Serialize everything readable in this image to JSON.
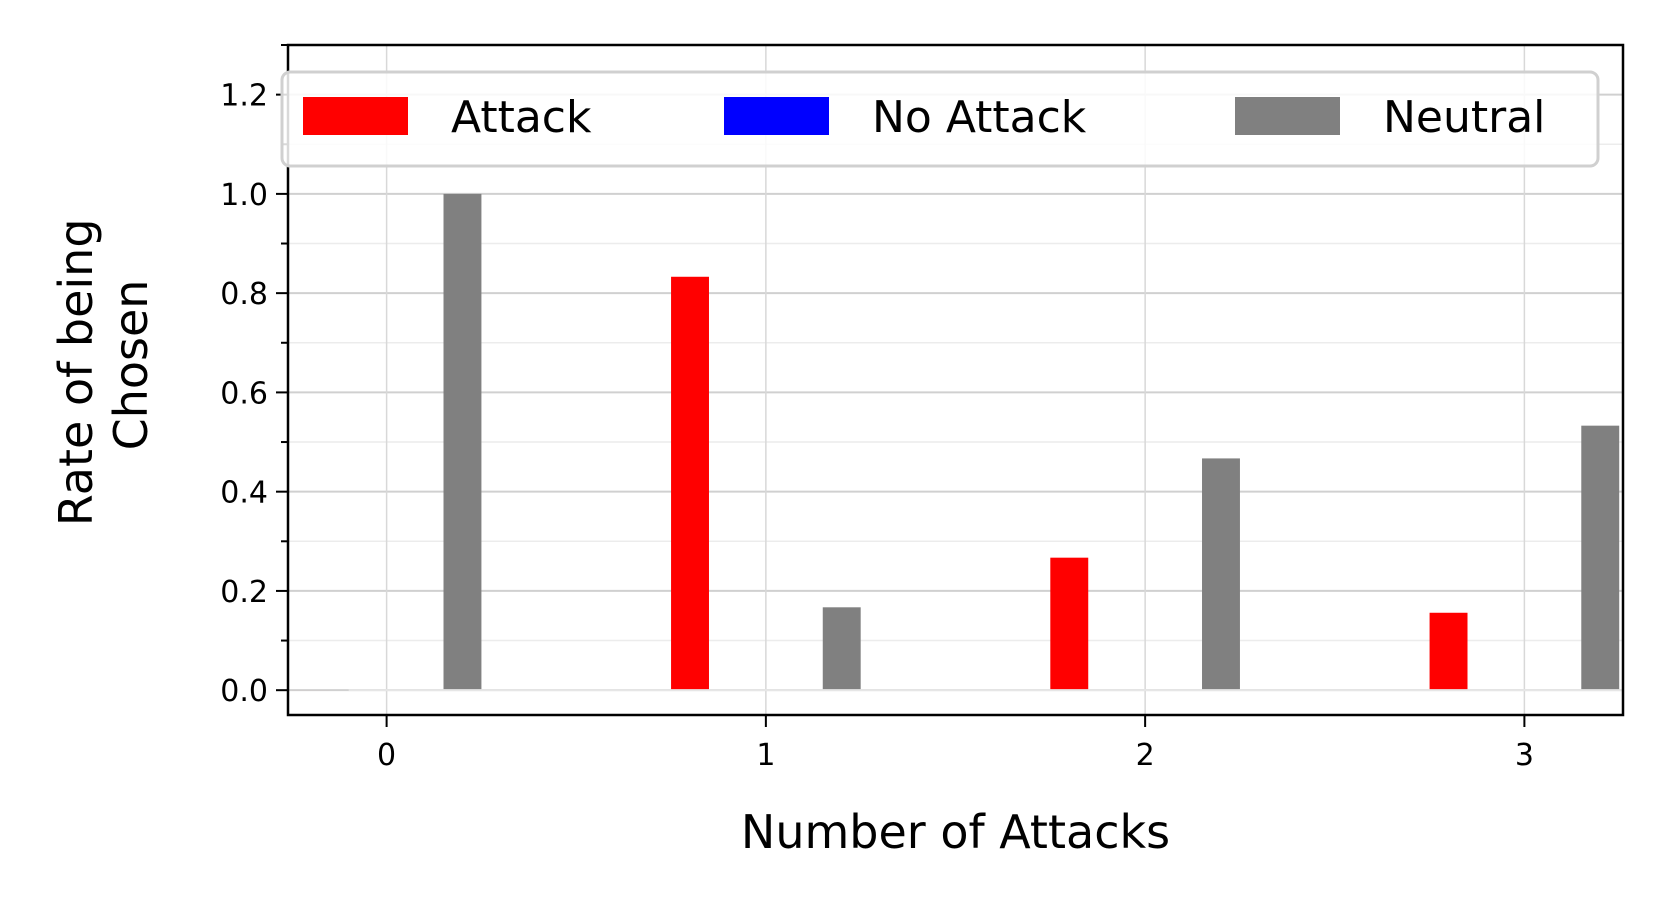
{
  "chart_data": {
    "type": "bar",
    "categories": [
      "0",
      "1",
      "2",
      "3"
    ],
    "series": [
      {
        "name": "Attack",
        "color": "#ff0000",
        "values": [
          0.0,
          0.833,
          0.267,
          0.156
        ]
      },
      {
        "name": "No Attack",
        "color": "#0000ff",
        "values": [
          0.0,
          0.0,
          0.0,
          0.0
        ]
      },
      {
        "name": "Neutral",
        "color": "#808080",
        "values": [
          1.0,
          0.167,
          0.467,
          0.533
        ]
      }
    ],
    "xlabel": "Number of Attacks",
    "ylabel_lines": [
      "Rate of being",
      "Chosen"
    ],
    "ylim": [
      -0.05,
      1.3
    ],
    "xlim": [
      -0.26,
      3.26
    ],
    "yticks": [
      "0.0",
      "0.2",
      "0.4",
      "0.6",
      "0.8",
      "1.0",
      "1.2"
    ],
    "grid": true,
    "legend_position": "top"
  }
}
